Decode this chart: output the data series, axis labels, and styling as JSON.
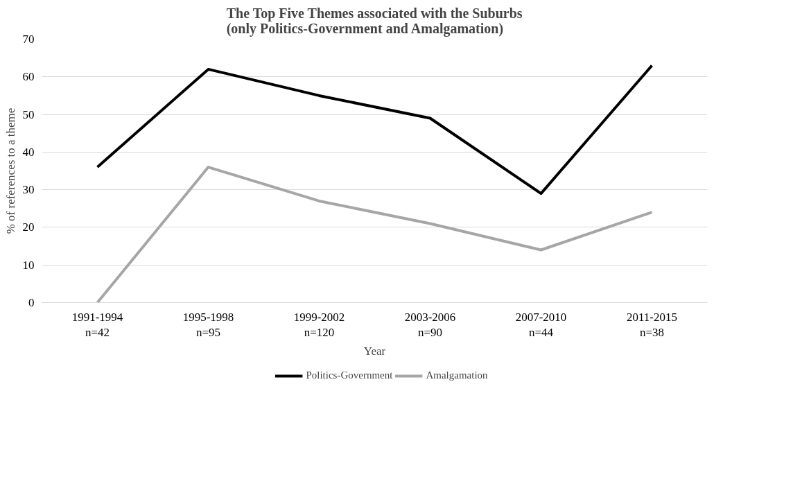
{
  "chart_data": {
    "type": "line",
    "title": "The Top Five Themes associated with the Suburbs\n(only Politics-Government and Amalgamation)",
    "xlabel": "Year",
    "ylabel": "% of references to a theme",
    "categories": [
      "1991-1994\nn=42",
      "1995-1998\nn=95",
      "1999-2002\nn=120",
      "2003-2006\nn=90",
      "2007-2010\nn=44",
      "2011-2015\nn=38"
    ],
    "series": [
      {
        "name": "Politics-Government",
        "color": "#000000",
        "values": [
          36,
          62,
          55,
          49,
          29,
          63
        ]
      },
      {
        "name": "Amalgamation",
        "color": "#a6a6a6",
        "values": [
          0,
          36,
          27,
          21,
          14,
          24
        ]
      }
    ],
    "ylim": [
      0,
      70
    ],
    "yticks": [
      0,
      10,
      20,
      30,
      40,
      50,
      60,
      70
    ],
    "grid": "y",
    "legend": "bottom",
    "marker": "none",
    "line_style": "solid"
  }
}
